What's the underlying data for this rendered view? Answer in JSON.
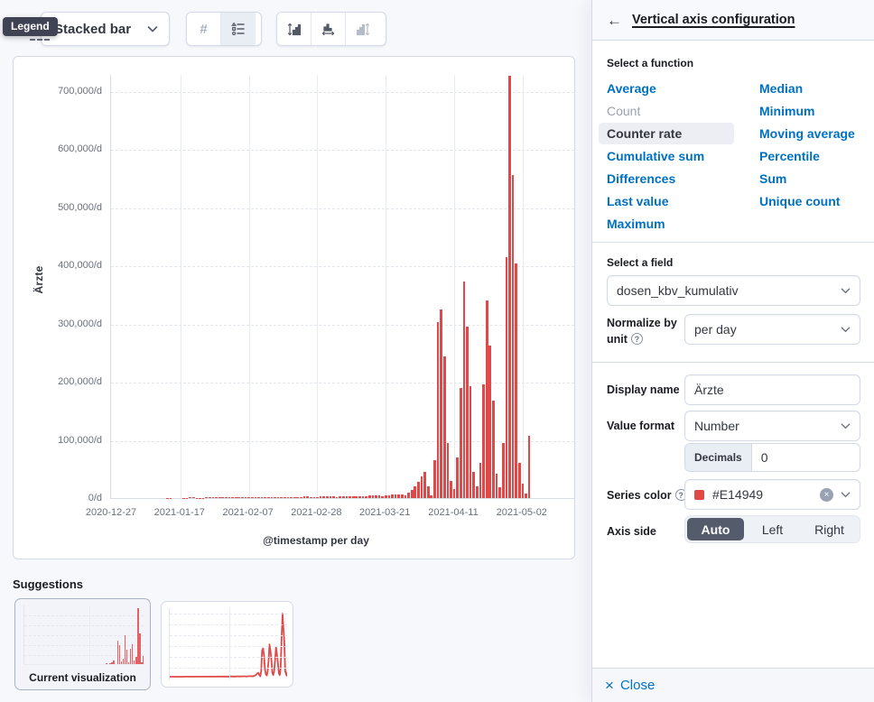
{
  "colors": {
    "series": "#E14949",
    "link": "#0071c2",
    "tooltip_bg": "#404353",
    "selected_segment": "#545b6b",
    "border": "#d3dae6"
  },
  "toolbar": {
    "legend_tooltip": "Legend",
    "chart_type_label": "Stacked bar",
    "values_button_label": "#",
    "icons": [
      "chevron-down-icon",
      "legend-list-icon",
      "left-axis-icon",
      "bottom-axis-icon",
      "right-axis-icon"
    ]
  },
  "chart": {
    "y_axis_title": "Ärzte",
    "x_axis_title": "@timestamp per day",
    "y_ticks": [
      "0/d",
      "100,000/d",
      "200,000/d",
      "300,000/d",
      "400,000/d",
      "500,000/d",
      "600,000/d",
      "700,000/d"
    ],
    "x_ticks": [
      "2020-12-27",
      "2021-01-17",
      "2021-02-07",
      "2021-02-28",
      "2021-03-21",
      "2021-04-11",
      "2021-05-02"
    ]
  },
  "chart_data": {
    "type": "bar",
    "series_name": "Ärzte",
    "unit": "per day",
    "start_date": "2020-12-27",
    "interval_days": 1,
    "ylim": [
      0,
      700000
    ],
    "xlabel": "@timestamp per day",
    "ylabel": "Ärzte",
    "grid": true,
    "values": [
      0,
      0,
      0,
      0,
      0,
      0,
      0,
      100,
      200,
      300,
      300,
      400,
      400,
      300,
      400,
      500,
      600,
      700,
      700,
      600,
      500,
      600,
      700,
      800,
      900,
      900,
      800,
      700,
      800,
      900,
      1000,
      1100,
      1100,
      1000,
      900,
      900,
      1000,
      1200,
      1300,
      1300,
      1200,
      1000,
      1100,
      1300,
      1500,
      1600,
      1600,
      1400,
      1200,
      1300,
      1500,
      1800,
      2000,
      2000,
      1800,
      1500,
      1600,
      1900,
      2200,
      2400,
      2400,
      2100,
      1800,
      2000,
      2400,
      2800,
      3000,
      3000,
      2600,
      2200,
      2500,
      3000,
      3500,
      3800,
      3800,
      3300,
      2800,
      3200,
      3800,
      4500,
      5000,
      5000,
      4300,
      3600,
      4000,
      5000,
      6000,
      6500,
      6500,
      5500,
      4500,
      9000,
      14000,
      20000,
      28000,
      38000,
      45000,
      20000,
      5000,
      65000,
      303000,
      325000,
      243000,
      95000,
      30000,
      15000,
      70000,
      190000,
      372000,
      295000,
      192000,
      45000,
      20000,
      60000,
      195000,
      340000,
      263000,
      167000,
      42000,
      18000,
      95000,
      415000,
      727000,
      556000,
      404000,
      60000,
      25000,
      8000,
      107000
    ]
  },
  "suggestions": {
    "heading": "Suggestions",
    "current_label": "Current visualization"
  },
  "flyout": {
    "title": "Vertical axis configuration",
    "function_section_label": "Select a function",
    "functions": [
      {
        "label": "Average",
        "state": "link"
      },
      {
        "label": "Count",
        "state": "disabled"
      },
      {
        "label": "Counter rate",
        "state": "selected"
      },
      {
        "label": "Cumulative sum",
        "state": "link"
      },
      {
        "label": "Differences",
        "state": "link"
      },
      {
        "label": "Last value",
        "state": "link"
      },
      {
        "label": "Maximum",
        "state": "link"
      },
      {
        "label": "Median",
        "state": "link"
      },
      {
        "label": "Minimum",
        "state": "link"
      },
      {
        "label": "Moving average",
        "state": "link"
      },
      {
        "label": "Percentile",
        "state": "link"
      },
      {
        "label": "Sum",
        "state": "link"
      },
      {
        "label": "Unique count",
        "state": "link"
      }
    ],
    "field_section_label": "Select a field",
    "field_value": "dosen_kbv_kumulativ",
    "normalize_label": "Normalize by unit",
    "normalize_value": "per day",
    "display_name_label": "Display name",
    "display_name_value": "Ärzte",
    "value_format_label": "Value format",
    "value_format_value": "Number",
    "decimals_label": "Decimals",
    "decimals_value": "0",
    "series_color_label": "Series color",
    "series_color_value": "#E14949",
    "axis_side_label": "Axis side",
    "axis_side_options": [
      "Auto",
      "Left",
      "Right"
    ],
    "axis_side_selected": "Auto",
    "close_label": "Close"
  }
}
